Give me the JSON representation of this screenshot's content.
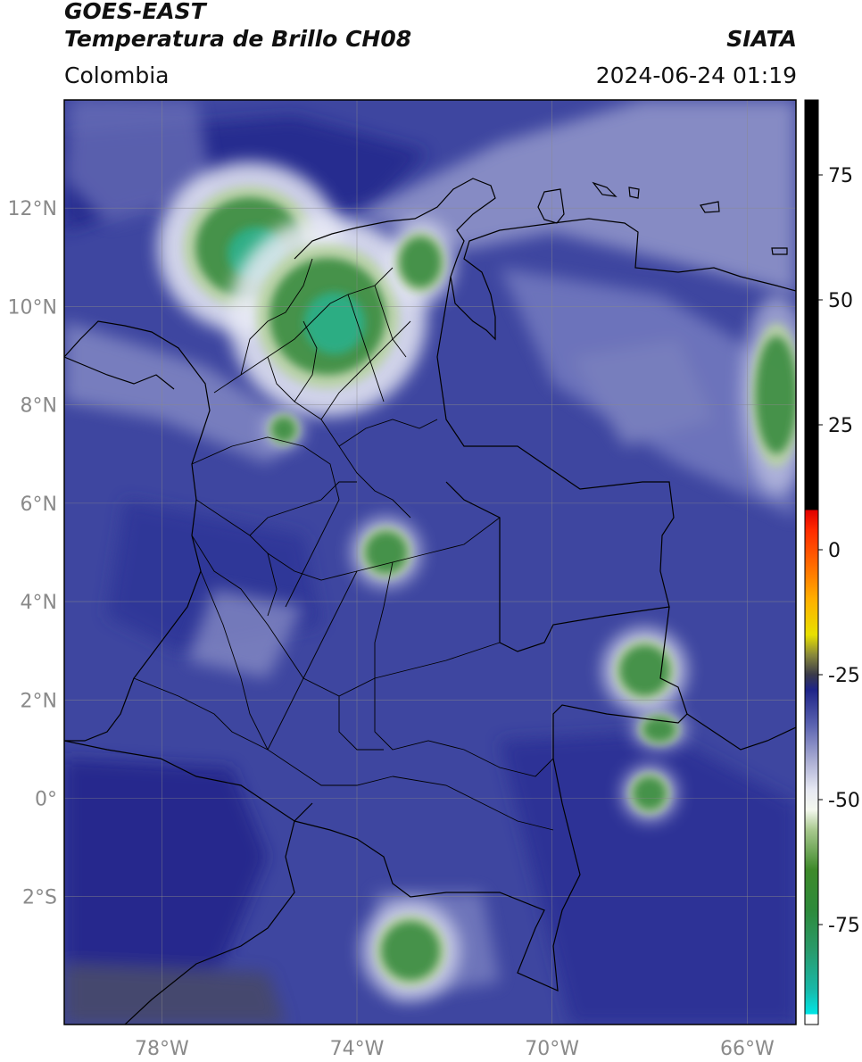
{
  "header": {
    "satellite": "GOES-EAST",
    "product": "Temperatura de Brillo CH08",
    "agency": "SIATA",
    "region": "Colombia",
    "datetime": "2024-06-24 01:19"
  },
  "map": {
    "extent": {
      "lon_min": -80.0,
      "lon_max": -65.0,
      "lat_min": -4.6,
      "lat_max": 14.2
    },
    "lon_ticks": [
      {
        "value": -78,
        "label": "78°W"
      },
      {
        "value": -74,
        "label": "74°W"
      },
      {
        "value": -70,
        "label": "70°W"
      },
      {
        "value": -66,
        "label": "66°W"
      }
    ],
    "lat_ticks": [
      {
        "value": 12,
        "label": "12°N"
      },
      {
        "value": 10,
        "label": "10°N"
      },
      {
        "value": 8,
        "label": "8°N"
      },
      {
        "value": 6,
        "label": "6°N"
      },
      {
        "value": 4,
        "label": "4°N"
      },
      {
        "value": 2,
        "label": "2°N"
      },
      {
        "value": 0,
        "label": "0°"
      },
      {
        "value": -2,
        "label": "2°S"
      }
    ],
    "grid": true,
    "gridlines_color": "#8a8a8a",
    "background_color": "#3e46a0",
    "border_color": "#000000",
    "cloud_features": [
      {
        "lon": -76.2,
        "lat": 11.2,
        "rx": 1.3,
        "ry": 1.2,
        "intensity": 1.0
      },
      {
        "lon": -74.6,
        "lat": 9.8,
        "rx": 1.4,
        "ry": 1.4,
        "intensity": 1.0
      },
      {
        "lon": -72.7,
        "lat": 10.9,
        "rx": 0.5,
        "ry": 0.6,
        "intensity": 0.8
      },
      {
        "lon": -73.4,
        "lat": 5.0,
        "rx": 0.5,
        "ry": 0.5,
        "intensity": 0.7
      },
      {
        "lon": -68.1,
        "lat": 2.6,
        "rx": 0.6,
        "ry": 0.6,
        "intensity": 0.8
      },
      {
        "lon": -67.8,
        "lat": 1.4,
        "rx": 0.4,
        "ry": 0.3,
        "intensity": 0.6
      },
      {
        "lon": -68.0,
        "lat": 0.1,
        "rx": 0.4,
        "ry": 0.4,
        "intensity": 0.7
      },
      {
        "lon": -72.9,
        "lat": -3.1,
        "rx": 0.7,
        "ry": 0.7,
        "intensity": 0.8
      },
      {
        "lon": -65.4,
        "lat": 8.2,
        "rx": 0.5,
        "ry": 1.4,
        "intensity": 0.6
      },
      {
        "lon": -75.5,
        "lat": 7.5,
        "rx": 0.3,
        "ry": 0.3,
        "intensity": 0.5
      }
    ]
  },
  "colorbar": {
    "vmin": -95,
    "vmax": 90,
    "ticks": [
      {
        "value": 75,
        "label": "75"
      },
      {
        "value": 50,
        "label": "50"
      },
      {
        "value": 25,
        "label": "25"
      },
      {
        "value": 0,
        "label": "0"
      },
      {
        "value": -25,
        "label": "-25"
      },
      {
        "value": -50,
        "label": "-50"
      },
      {
        "value": -75,
        "label": "-75"
      }
    ],
    "stops": [
      {
        "value": -95,
        "color": "#ffffff"
      },
      {
        "value": -93,
        "color": "#ffffff"
      },
      {
        "value": -92.9,
        "color": "#00e5e5"
      },
      {
        "value": -88,
        "color": "#18b8a8"
      },
      {
        "value": -80,
        "color": "#2a9a6a"
      },
      {
        "value": -72,
        "color": "#2d8a3a"
      },
      {
        "value": -64,
        "color": "#3e8a2a"
      },
      {
        "value": -56,
        "color": "#a9c98f"
      },
      {
        "value": -52,
        "color": "#f4f8ef"
      },
      {
        "value": -48,
        "color": "#e6e8f2"
      },
      {
        "value": -42,
        "color": "#a8abd2"
      },
      {
        "value": -35,
        "color": "#5a62b0"
      },
      {
        "value": -28,
        "color": "#1e2488"
      },
      {
        "value": -25,
        "color": "#3a3a4a"
      },
      {
        "value": -21,
        "color": "#8a8a3a"
      },
      {
        "value": -17,
        "color": "#e8e000"
      },
      {
        "value": -10,
        "color": "#ffb000"
      },
      {
        "value": -3,
        "color": "#ff6a00"
      },
      {
        "value": 4,
        "color": "#ff2a00"
      },
      {
        "value": 7.9,
        "color": "#e00000"
      },
      {
        "value": 8,
        "color": "#000000"
      },
      {
        "value": 90,
        "color": "#000000"
      }
    ]
  }
}
